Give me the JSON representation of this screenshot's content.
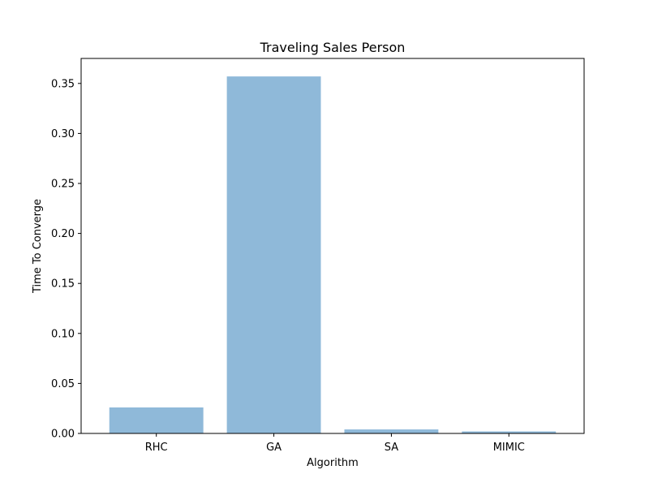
{
  "chart_data": {
    "type": "bar",
    "title": "Traveling Sales Person",
    "xlabel": "Algorithm",
    "ylabel": "Time To Converge",
    "categories": [
      "RHC",
      "GA",
      "SA",
      "MIMIC"
    ],
    "values": [
      0.026,
      0.357,
      0.004,
      0.002
    ],
    "ylim": [
      0,
      0.375
    ],
    "yticks": [
      0.0,
      0.05,
      0.1,
      0.15,
      0.2,
      0.25,
      0.3,
      0.35
    ],
    "ytick_labels": [
      "0.00",
      "0.05",
      "0.10",
      "0.15",
      "0.20",
      "0.25",
      "0.30",
      "0.35"
    ],
    "bar_color": "#8fb9d9",
    "grid": false,
    "legend": false
  }
}
